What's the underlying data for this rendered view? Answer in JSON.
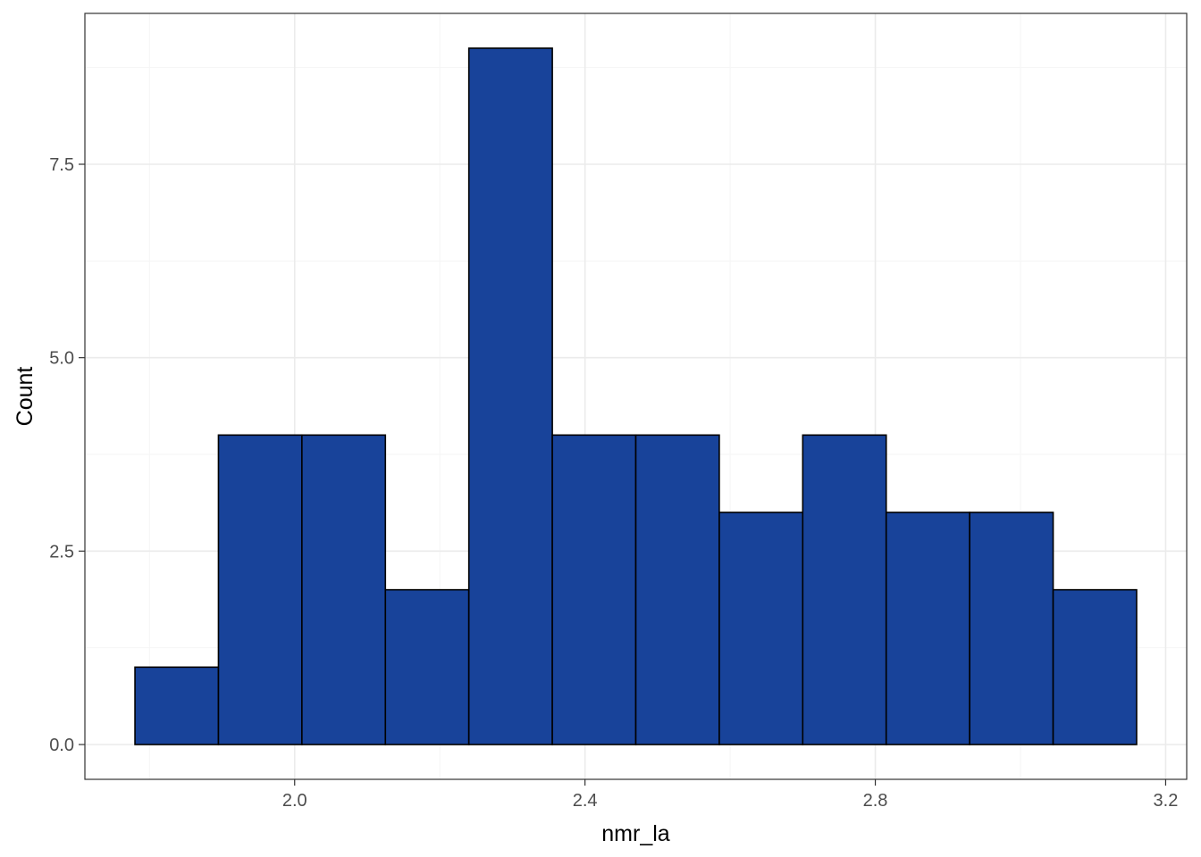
{
  "chart_data": {
    "type": "bar",
    "subtype": "histogram",
    "title": "",
    "xlabel": "nmr_la",
    "ylabel": "Count",
    "bins": [
      {
        "x0": 1.78,
        "x1": 1.895,
        "count": 1
      },
      {
        "x0": 1.895,
        "x1": 2.01,
        "count": 4
      },
      {
        "x0": 2.01,
        "x1": 2.125,
        "count": 4
      },
      {
        "x0": 2.125,
        "x1": 2.24,
        "count": 2
      },
      {
        "x0": 2.24,
        "x1": 2.355,
        "count": 9
      },
      {
        "x0": 2.355,
        "x1": 2.47,
        "count": 4
      },
      {
        "x0": 2.47,
        "x1": 2.585,
        "count": 4
      },
      {
        "x0": 2.585,
        "x1": 2.7,
        "count": 3
      },
      {
        "x0": 2.7,
        "x1": 2.815,
        "count": 4
      },
      {
        "x0": 2.815,
        "x1": 2.93,
        "count": 3
      },
      {
        "x0": 2.93,
        "x1": 3.045,
        "count": 3
      },
      {
        "x0": 3.045,
        "x1": 3.16,
        "count": 2
      }
    ],
    "xlim": [
      1.711,
      3.229
    ],
    "ylim": [
      -0.45,
      9.45
    ],
    "x_ticks": [
      2.0,
      2.4,
      2.8,
      3.2
    ],
    "x_tick_labels": [
      "2.0",
      "2.4",
      "2.8",
      "3.2"
    ],
    "y_ticks": [
      0.0,
      2.5,
      5.0,
      7.5
    ],
    "y_tick_labels": [
      "0.0",
      "2.5",
      "5.0",
      "7.5"
    ],
    "grid": true,
    "legend": "none",
    "colors": {
      "bar_fill": "#18439a",
      "bar_stroke": "#000000",
      "grid_major": "#ebebeb",
      "grid_minor": "#f5f5f5",
      "panel_border": "#333333",
      "tick_text": "#4d4d4d"
    }
  }
}
